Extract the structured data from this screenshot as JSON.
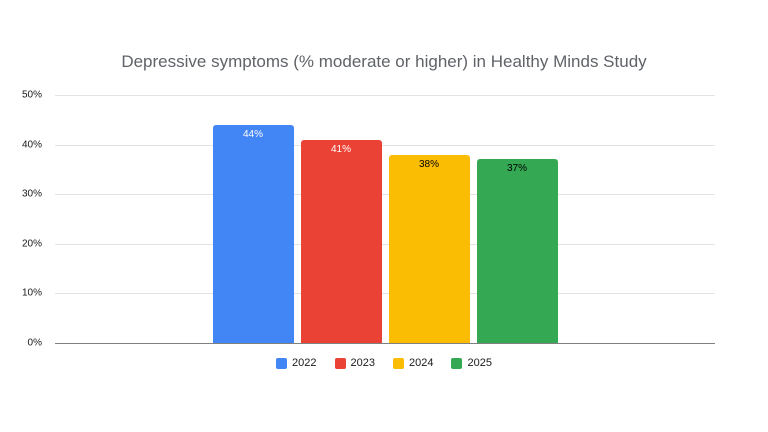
{
  "chart_data": {
    "type": "bar",
    "title": "Depressive symptoms (% moderate or higher) in Healthy Minds Study",
    "categories": [
      "2022",
      "2023",
      "2024",
      "2025"
    ],
    "values": [
      44,
      41,
      38,
      37
    ],
    "bar_labels": [
      "44%",
      "41%",
      "38%",
      "37%"
    ],
    "colors": [
      "#4285F4",
      "#EA4335",
      "#FBBC04",
      "#34A853"
    ],
    "bar_label_colors": [
      "#ffffff",
      "#ffffff",
      "#000000",
      "#000000"
    ],
    "xlabel": "",
    "ylabel": "",
    "ylim": [
      0,
      50
    ],
    "yticks": [
      "0%",
      "10%",
      "20%",
      "30%",
      "40%",
      "50%"
    ],
    "grid": true,
    "legend": [
      "2022",
      "2023",
      "2024",
      "2025"
    ],
    "legend_position": "bottom"
  }
}
